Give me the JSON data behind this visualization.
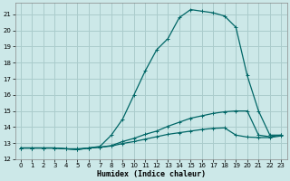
{
  "title": "",
  "xlabel": "Humidex (Indice chaleur)",
  "bg_color": "#cce8e8",
  "grid_color": "#aacccc",
  "line_color": "#006666",
  "xlim": [
    -0.5,
    23.5
  ],
  "ylim": [
    12.3,
    21.7
  ],
  "yticks": [
    12,
    13,
    14,
    15,
    16,
    17,
    18,
    19,
    20,
    21
  ],
  "xticks": [
    0,
    1,
    2,
    3,
    4,
    5,
    6,
    7,
    8,
    9,
    10,
    11,
    12,
    13,
    14,
    15,
    16,
    17,
    18,
    19,
    20,
    21,
    22,
    23
  ],
  "line1_x": [
    0,
    1,
    2,
    3,
    4,
    5,
    6,
    7,
    8,
    9,
    10,
    11,
    12,
    13,
    14,
    15,
    16,
    17,
    18,
    19,
    20,
    21,
    22,
    23
  ],
  "line1_y": [
    12.7,
    12.7,
    12.7,
    12.7,
    12.65,
    12.6,
    12.7,
    12.8,
    13.5,
    14.5,
    16.0,
    17.5,
    18.8,
    19.5,
    20.8,
    21.3,
    21.2,
    21.1,
    20.9,
    20.2,
    17.2,
    15.0,
    13.5,
    13.5
  ],
  "line2_x": [
    0,
    1,
    2,
    3,
    4,
    5,
    6,
    7,
    8,
    9,
    10,
    11,
    12,
    13,
    14,
    15,
    16,
    17,
    18,
    19,
    20,
    21,
    22,
    23
  ],
  "line2_y": [
    12.7,
    12.7,
    12.7,
    12.7,
    12.65,
    12.65,
    12.7,
    12.75,
    12.85,
    13.1,
    13.3,
    13.55,
    13.75,
    14.05,
    14.3,
    14.55,
    14.7,
    14.85,
    14.95,
    15.0,
    15.0,
    13.5,
    13.4,
    13.5
  ],
  "line3_x": [
    0,
    1,
    2,
    3,
    4,
    5,
    6,
    7,
    8,
    9,
    10,
    11,
    12,
    13,
    14,
    15,
    16,
    17,
    18,
    19,
    20,
    21,
    22,
    23
  ],
  "line3_y": [
    12.7,
    12.7,
    12.7,
    12.7,
    12.65,
    12.6,
    12.7,
    12.75,
    12.82,
    12.98,
    13.1,
    13.25,
    13.4,
    13.55,
    13.65,
    13.75,
    13.85,
    13.92,
    13.95,
    13.5,
    13.38,
    13.35,
    13.35,
    13.45
  ]
}
